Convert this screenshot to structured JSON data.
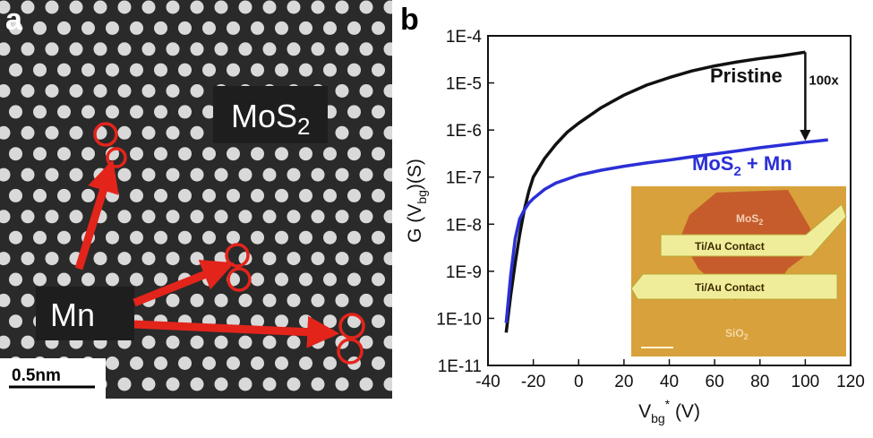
{
  "panel_a": {
    "letter": "a",
    "material_label": "MoS",
    "material_subscript": "2",
    "dopant_label": "Mn",
    "scale_bar": "0.5nm",
    "colors": {
      "marker": "#e3241b",
      "background": "#2a2a2a",
      "atom": "#d9d9d9"
    }
  },
  "panel_b": {
    "letter": "b",
    "annotation_factor": "100x",
    "inset": {
      "top_label": "MoS",
      "top_label_sub": "2",
      "contact_1": "Ti/Au Contact",
      "contact_2": "Ti/Au Contact",
      "substrate": "SiO",
      "substrate_sub": "2",
      "colors": {
        "background": "#d8a13b",
        "flake": "#c4542a",
        "contact": "#f0ed9a"
      }
    }
  },
  "chart_data": {
    "type": "line",
    "xlabel": {
      "main": "V",
      "sub": "bg",
      "sup": "*",
      "unit": " (V)"
    },
    "ylabel": {
      "main": "G (V",
      "sub": "bg",
      "unit": ")(S)"
    },
    "xlim": [
      -40,
      120
    ],
    "ylim": [
      1e-11,
      0.0001
    ],
    "y_scale": "log",
    "x_ticks": [
      "-40",
      "-20",
      "0",
      "20",
      "40",
      "60",
      "80",
      "100",
      "120"
    ],
    "y_ticks": [
      "1E-4",
      "1E-5",
      "1E-6",
      "1E-7",
      "1E-8",
      "1E-9",
      "1E-10",
      "1E-11"
    ],
    "series": [
      {
        "name": "Pristine",
        "color": "#111111",
        "x": [
          -32,
          -30,
          -28,
          -26,
          -24,
          -22,
          -20,
          -15,
          -10,
          -5,
          0,
          10,
          20,
          30,
          40,
          50,
          60,
          70,
          80,
          90,
          100
        ],
        "y": [
          5e-11,
          3e-10,
          1.5e-09,
          6e-09,
          2e-08,
          5e-08,
          1e-07,
          2.5e-07,
          5e-07,
          9e-07,
          1.4e-06,
          3e-06,
          5.5e-06,
          9e-06,
          1.3e-05,
          1.8e-05,
          2.3e-05,
          2.8e-05,
          3.3e-05,
          3.8e-05,
          4.5e-05
        ]
      },
      {
        "name": "MoS₂ + Mn",
        "name_main": "MoS",
        "name_sub": "2",
        "name_tail": " + Mn",
        "color": "#2b2fd6",
        "x": [
          -32,
          -30,
          -28,
          -26,
          -24,
          -22,
          -20,
          -15,
          -10,
          0,
          10,
          20,
          30,
          40,
          50,
          60,
          70,
          80,
          90,
          100,
          110
        ],
        "y": [
          8e-11,
          8e-10,
          5e-09,
          1.3e-08,
          2e-08,
          2.8e-08,
          3.5e-08,
          5.5e-08,
          7.5e-08,
          1.1e-07,
          1.4e-07,
          1.7e-07,
          2e-07,
          2.3e-07,
          2.7e-07,
          3.1e-07,
          3.6e-07,
          4.2e-07,
          4.8e-07,
          5.5e-07,
          6.2e-07
        ]
      }
    ],
    "arrow": {
      "x": 100,
      "y_from": 4.5e-05,
      "y_to": 5.5e-07
    }
  }
}
